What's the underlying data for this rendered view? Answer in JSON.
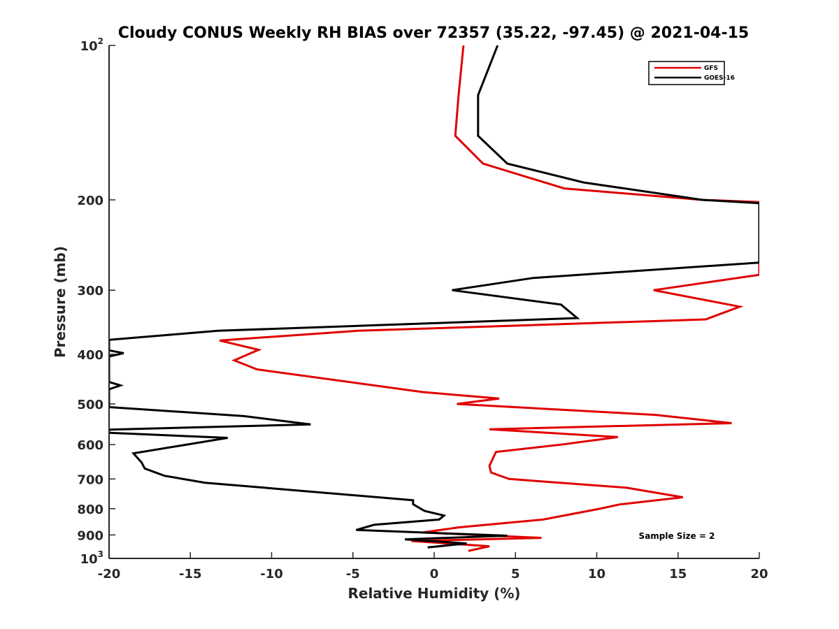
{
  "chart_data": {
    "type": "line",
    "title": "Cloudy CONUS Weekly RH BIAS over 72357 (35.22, -97.45) @ 2021-04-15",
    "xlabel": "Relative Humidity (%)",
    "ylabel": "Pressure (mb)",
    "xlim": [
      -20,
      20
    ],
    "ylim": [
      1000,
      100
    ],
    "yscale": "log",
    "y_reversed": true,
    "grid": false,
    "legend_position": "top-right",
    "xticks": [
      -20,
      -15,
      -10,
      -5,
      0,
      5,
      10,
      15,
      20
    ],
    "yticks": [
      {
        "value": 100,
        "label": "10",
        "sup": "2"
      },
      {
        "value": 200,
        "label": "200",
        "sup": ""
      },
      {
        "value": 300,
        "label": "300",
        "sup": ""
      },
      {
        "value": 400,
        "label": "400",
        "sup": ""
      },
      {
        "value": 500,
        "label": "500",
        "sup": ""
      },
      {
        "value": 600,
        "label": "600",
        "sup": ""
      },
      {
        "value": 700,
        "label": "700",
        "sup": ""
      },
      {
        "value": 800,
        "label": "800",
        "sup": ""
      },
      {
        "value": 900,
        "label": "900",
        "sup": ""
      },
      {
        "value": 1000,
        "label": "10",
        "sup": "3"
      }
    ],
    "annotation": "Sample Size = 2",
    "series": [
      {
        "name": "GFS",
        "color": "#e00000",
        "points": [
          [
            1.8,
            100
          ],
          [
            1.5,
            125
          ],
          [
            1.3,
            150
          ],
          [
            3.0,
            170
          ],
          [
            8.0,
            190
          ],
          [
            16.5,
            200
          ],
          [
            20.0,
            202
          ],
          [
            20.0,
            280
          ],
          [
            13.5,
            300
          ],
          [
            18.8,
            323
          ],
          [
            16.7,
            342
          ],
          [
            -4.7,
            360
          ],
          [
            -13.2,
            376
          ],
          [
            -10.8,
            392
          ],
          [
            -12.3,
            411
          ],
          [
            -10.9,
            428
          ],
          [
            -0.7,
            474
          ],
          [
            4.0,
            488
          ],
          [
            1.4,
            500
          ],
          [
            13.6,
            525
          ],
          [
            18.3,
            545
          ],
          [
            3.4,
            560
          ],
          [
            11.3,
            580
          ],
          [
            7.8,
            600
          ],
          [
            3.8,
            620
          ],
          [
            3.4,
            660
          ],
          [
            3.5,
            680
          ],
          [
            4.6,
            700
          ],
          [
            11.8,
            728
          ],
          [
            15.3,
            760
          ],
          [
            11.4,
            785
          ],
          [
            10.2,
            800
          ],
          [
            6.7,
            840
          ],
          [
            1.5,
            870
          ],
          [
            -0.7,
            890
          ],
          [
            6.6,
            912
          ],
          [
            -1.4,
            925
          ],
          [
            3.4,
            947
          ],
          [
            2.1,
            967
          ]
        ]
      },
      {
        "name": "GOES-16",
        "color": "#000000",
        "points": [
          [
            3.9,
            100
          ],
          [
            2.7,
            125
          ],
          [
            2.7,
            150
          ],
          [
            4.5,
            170
          ],
          [
            9.2,
            185
          ],
          [
            16.5,
            200
          ],
          [
            20.0,
            203
          ],
          [
            20.0,
            265
          ],
          [
            6.1,
            284
          ],
          [
            1.1,
            300
          ],
          [
            7.8,
            320
          ],
          [
            8.8,
            340
          ],
          [
            -13.3,
            360
          ],
          [
            -20.0,
            375
          ],
          [
            -20.0,
            393
          ],
          [
            -19.1,
            398
          ],
          [
            -20.0,
            404
          ],
          [
            -20.0,
            453
          ],
          [
            -19.3,
            460
          ],
          [
            -20.0,
            468
          ],
          [
            -20.0,
            507
          ],
          [
            -11.7,
            528
          ],
          [
            -7.6,
            548
          ],
          [
            -20.0,
            561
          ],
          [
            -20.0,
            569
          ],
          [
            -12.7,
            582
          ],
          [
            -18.5,
            624
          ],
          [
            -18.0,
            650
          ],
          [
            -17.8,
            668
          ],
          [
            -16.6,
            690
          ],
          [
            -14.1,
            712
          ],
          [
            -1.3,
            770
          ],
          [
            -1.3,
            784
          ],
          [
            -0.6,
            808
          ],
          [
            0.6,
            825
          ],
          [
            0.3,
            840
          ],
          [
            -3.7,
            860
          ],
          [
            -4.8,
            880
          ],
          [
            4.5,
            903
          ],
          [
            -1.8,
            918
          ],
          [
            2.0,
            935
          ],
          [
            -0.4,
            952
          ]
        ]
      }
    ]
  }
}
